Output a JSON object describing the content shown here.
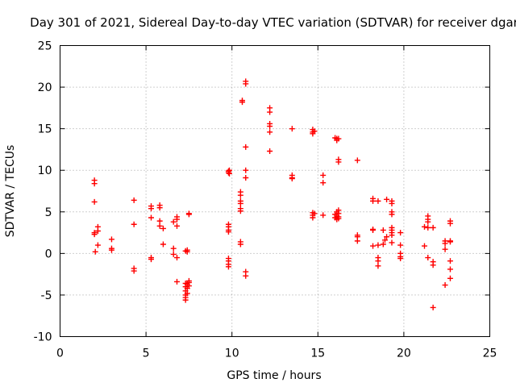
{
  "chart_data": {
    "type": "scatter",
    "title": "Day 301 of 2021, Sidereal Day-to-day VTEC variation (SDTVAR) for receiver dgar",
    "xlabel": "GPS time / hours",
    "ylabel": "SDTVAR / TECUs",
    "xlim": [
      0,
      25
    ],
    "ylim": [
      -10,
      25
    ],
    "xticks": [
      0,
      5,
      10,
      15,
      20,
      25
    ],
    "yticks": [
      -10,
      -5,
      0,
      5,
      10,
      15,
      20,
      25
    ],
    "grid": true,
    "marker": "+",
    "color": "#ff0000",
    "series": [
      {
        "name": "SDTVAR",
        "points": [
          [
            2.0,
            8.8
          ],
          [
            2.0,
            8.4
          ],
          [
            2.0,
            6.2
          ],
          [
            2.0,
            2.5
          ],
          [
            2.0,
            2.3
          ],
          [
            2.05,
            0.2
          ],
          [
            2.2,
            3.2
          ],
          [
            2.2,
            2.7
          ],
          [
            2.2,
            1.0
          ],
          [
            3.0,
            1.7
          ],
          [
            3.0,
            0.6
          ],
          [
            3.0,
            0.4
          ],
          [
            4.3,
            6.4
          ],
          [
            4.3,
            3.5
          ],
          [
            4.3,
            -1.8
          ],
          [
            4.3,
            -2.1
          ],
          [
            5.3,
            5.7
          ],
          [
            5.3,
            5.4
          ],
          [
            5.3,
            4.3
          ],
          [
            5.3,
            -0.5
          ],
          [
            5.3,
            -0.7
          ],
          [
            5.8,
            5.8
          ],
          [
            5.8,
            5.5
          ],
          [
            5.8,
            3.9
          ],
          [
            5.8,
            3.3
          ],
          [
            6.0,
            3.0
          ],
          [
            6.0,
            1.1
          ],
          [
            6.6,
            3.8
          ],
          [
            6.6,
            0.6
          ],
          [
            6.6,
            -0.1
          ],
          [
            6.8,
            4.4
          ],
          [
            6.8,
            4.1
          ],
          [
            6.8,
            3.3
          ],
          [
            6.8,
            -0.5
          ],
          [
            6.8,
            -3.4
          ],
          [
            7.3,
            0.3
          ],
          [
            7.3,
            -3.6
          ],
          [
            7.3,
            -4.0
          ],
          [
            7.3,
            -4.5
          ],
          [
            7.3,
            -5.0
          ],
          [
            7.3,
            -5.3
          ],
          [
            7.3,
            -5.6
          ],
          [
            7.4,
            0.4
          ],
          [
            7.4,
            0.2
          ],
          [
            7.4,
            -3.7
          ],
          [
            7.4,
            -4.2
          ],
          [
            7.4,
            -4.8
          ],
          [
            7.5,
            4.8
          ],
          [
            7.5,
            4.7
          ],
          [
            7.5,
            -3.3
          ],
          [
            7.5,
            -3.5
          ],
          [
            7.5,
            -3.9
          ],
          [
            9.8,
            9.9
          ],
          [
            9.8,
            9.7
          ],
          [
            9.8,
            3.5
          ],
          [
            9.8,
            3.2
          ],
          [
            9.8,
            2.8
          ],
          [
            9.8,
            2.6
          ],
          [
            9.8,
            -0.6
          ],
          [
            9.8,
            -0.9
          ],
          [
            9.8,
            -1.3
          ],
          [
            9.8,
            -1.6
          ],
          [
            9.85,
            10.0
          ],
          [
            9.85,
            9.6
          ],
          [
            10.5,
            7.4
          ],
          [
            10.5,
            7.0
          ],
          [
            10.5,
            6.3
          ],
          [
            10.5,
            6.0
          ],
          [
            10.5,
            5.4
          ],
          [
            10.5,
            5.1
          ],
          [
            10.5,
            1.4
          ],
          [
            10.5,
            1.1
          ],
          [
            10.6,
            18.4
          ],
          [
            10.6,
            18.2
          ],
          [
            10.8,
            20.7
          ],
          [
            10.8,
            20.4
          ],
          [
            10.8,
            12.8
          ],
          [
            10.8,
            10.0
          ],
          [
            10.8,
            9.1
          ],
          [
            10.8,
            -2.2
          ],
          [
            10.8,
            -2.7
          ],
          [
            12.2,
            17.5
          ],
          [
            12.2,
            17.0
          ],
          [
            12.2,
            15.6
          ],
          [
            12.2,
            15.3
          ],
          [
            12.2,
            14.6
          ],
          [
            12.2,
            12.3
          ],
          [
            13.5,
            15.0
          ],
          [
            13.5,
            9.4
          ],
          [
            13.5,
            9.1
          ],
          [
            13.5,
            9.0
          ],
          [
            14.7,
            14.9
          ],
          [
            14.7,
            14.6
          ],
          [
            14.7,
            14.4
          ],
          [
            14.7,
            4.9
          ],
          [
            14.7,
            4.6
          ],
          [
            14.7,
            4.3
          ],
          [
            14.8,
            14.7
          ],
          [
            14.8,
            4.8
          ],
          [
            15.3,
            9.4
          ],
          [
            15.3,
            8.5
          ],
          [
            15.3,
            4.6
          ],
          [
            16.0,
            13.9
          ],
          [
            16.1,
            13.8
          ],
          [
            16.2,
            13.8
          ],
          [
            16.1,
            13.6
          ],
          [
            16.0,
            4.7
          ],
          [
            16.0,
            4.3
          ],
          [
            16.1,
            5.0
          ],
          [
            16.1,
            4.5
          ],
          [
            16.1,
            4.1
          ],
          [
            16.2,
            5.2
          ],
          [
            16.2,
            4.8
          ],
          [
            16.2,
            4.4
          ],
          [
            16.2,
            4.2
          ],
          [
            16.2,
            11.3
          ],
          [
            16.2,
            11.0
          ],
          [
            17.3,
            11.2
          ],
          [
            17.3,
            2.2
          ],
          [
            17.3,
            2.0
          ],
          [
            17.3,
            1.5
          ],
          [
            18.2,
            6.6
          ],
          [
            18.2,
            6.3
          ],
          [
            18.2,
            2.9
          ],
          [
            18.2,
            2.8
          ],
          [
            18.2,
            0.9
          ],
          [
            18.5,
            6.3
          ],
          [
            18.5,
            1.0
          ],
          [
            18.5,
            -0.5
          ],
          [
            18.5,
            -0.9
          ],
          [
            18.5,
            -1.5
          ],
          [
            18.8,
            1.1
          ],
          [
            18.8,
            2.8
          ],
          [
            18.9,
            1.6
          ],
          [
            19.0,
            6.5
          ],
          [
            19.0,
            2.0
          ],
          [
            19.3,
            6.3
          ],
          [
            19.3,
            6.0
          ],
          [
            19.3,
            5.0
          ],
          [
            19.3,
            4.7
          ],
          [
            19.3,
            3.1
          ],
          [
            19.3,
            2.8
          ],
          [
            19.3,
            2.5
          ],
          [
            19.3,
            2.2
          ],
          [
            19.3,
            1.3
          ],
          [
            19.8,
            2.5
          ],
          [
            19.8,
            1.0
          ],
          [
            19.8,
            0.0
          ],
          [
            19.8,
            -0.4
          ],
          [
            19.8,
            -0.6
          ],
          [
            21.2,
            3.2
          ],
          [
            21.2,
            0.9
          ],
          [
            21.4,
            4.5
          ],
          [
            21.4,
            4.1
          ],
          [
            21.4,
            3.8
          ],
          [
            21.4,
            3.1
          ],
          [
            21.4,
            -0.5
          ],
          [
            21.7,
            3.1
          ],
          [
            21.7,
            -1.0
          ],
          [
            21.7,
            -1.4
          ],
          [
            21.7,
            -6.5
          ],
          [
            22.4,
            1.5
          ],
          [
            22.4,
            1.2
          ],
          [
            22.4,
            0.5
          ],
          [
            22.4,
            -3.8
          ],
          [
            22.7,
            3.9
          ],
          [
            22.7,
            3.6
          ],
          [
            22.7,
            1.5
          ],
          [
            22.7,
            1.4
          ],
          [
            22.7,
            -0.9
          ],
          [
            22.7,
            -1.9
          ],
          [
            22.7,
            -3.0
          ]
        ]
      }
    ]
  }
}
